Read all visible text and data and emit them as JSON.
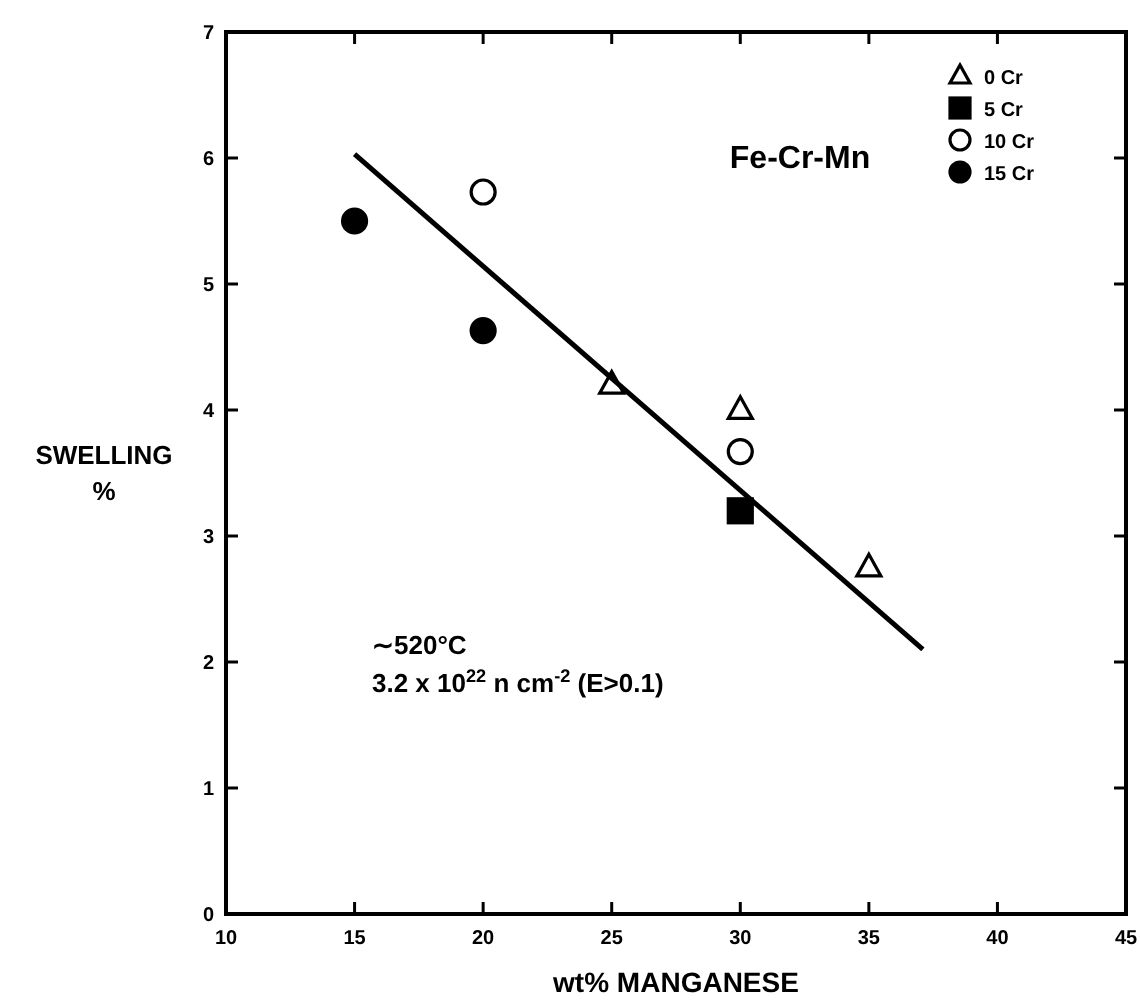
{
  "chart_data": {
    "type": "scatter",
    "title": "Fe-Cr-Mn",
    "xlabel": "wt% MANGANESE",
    "ylabel": "SWELLING\n%",
    "annotations": [
      "∼520°C",
      "3.2 x 10$^{22}$ n cm$^{-2}$ (E>0.1)"
    ],
    "series": [
      {
        "name": "0 Cr",
        "color": "#ffffff",
        "marker": "triangle",
        "x": [
          25,
          30,
          35
        ],
        "values": [
          4.2,
          4.0,
          2.75
        ]
      },
      {
        "name": "5 Cr",
        "color": "#000000",
        "marker": "square",
        "x": [
          30
        ],
        "values": [
          3.2
        ]
      },
      {
        "name": "10 Cr",
        "color": "#ffffff",
        "marker": "circle",
        "x": [
          20,
          30
        ],
        "values": [
          5.73,
          3.67
        ]
      },
      {
        "name": "15 Cr",
        "color": "#000000",
        "marker": "circle",
        "x": [
          15,
          20
        ],
        "values": [
          5.5,
          4.63
        ]
      },
      {
        "type": "line",
        "color": "#000000",
        "line_style": "solid",
        "marker": "none",
        "x": [
          15,
          37.1
        ],
        "values": [
          6.03,
          2.1
        ]
      }
    ],
    "xlim": [
      10,
      45
    ],
    "xticks": [
      10,
      15,
      20,
      25,
      30,
      35,
      40,
      45
    ],
    "ylim": [
      0,
      7
    ],
    "yticks": [
      0,
      1,
      2,
      3,
      4,
      5,
      6,
      7
    ],
    "grid": false,
    "legend": "top right"
  }
}
